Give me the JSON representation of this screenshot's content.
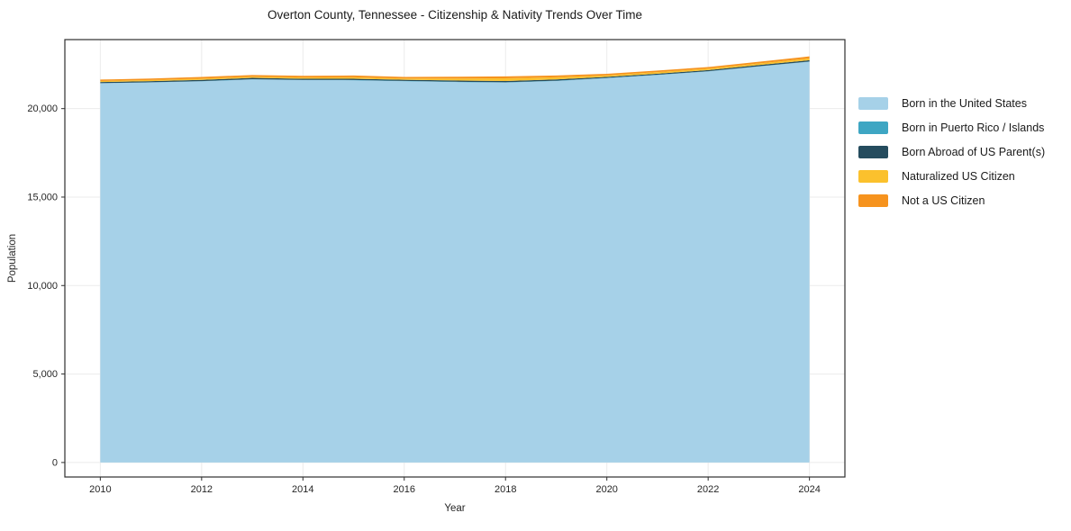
{
  "chart_data": {
    "type": "area",
    "stacked": true,
    "title": "Overton County, Tennessee - Citizenship & Nativity Trends Over Time",
    "xlabel": "Year",
    "ylabel": "Population",
    "x": [
      2010,
      2011,
      2012,
      2013,
      2014,
      2015,
      2016,
      2017,
      2018,
      2019,
      2020,
      2021,
      2022,
      2023,
      2024
    ],
    "series": [
      {
        "name": "Born in the United States",
        "color": "#a6d1e8",
        "values": [
          21430,
          21480,
          21540,
          21650,
          21610,
          21600,
          21550,
          21500,
          21470,
          21560,
          21720,
          21900,
          22100,
          22380,
          22650
        ]
      },
      {
        "name": "Born in Puerto Rico / Islands",
        "color": "#3ea6c3",
        "values": [
          10,
          10,
          15,
          15,
          15,
          20,
          15,
          20,
          20,
          20,
          15,
          15,
          15,
          15,
          15
        ]
      },
      {
        "name": "Born Abroad of US Parent(s)",
        "color": "#254c5e",
        "values": [
          60,
          65,
          70,
          70,
          65,
          70,
          65,
          70,
          70,
          70,
          60,
          60,
          60,
          65,
          70
        ]
      },
      {
        "name": "Naturalized US Citizen",
        "color": "#fbc12d",
        "values": [
          60,
          65,
          70,
          70,
          70,
          80,
          70,
          110,
          150,
          120,
          85,
          85,
          85,
          90,
          105
        ]
      },
      {
        "name": "Not a US Citizen",
        "color": "#f6931e",
        "values": [
          80,
          80,
          95,
          95,
          90,
          100,
          90,
          100,
          110,
          100,
          90,
          90,
          90,
          100,
          110
        ]
      }
    ],
    "xticks": [
      2010,
      2012,
      2014,
      2016,
      2018,
      2020,
      2022,
      2024
    ],
    "xtick_labels": [
      "2010",
      "2012",
      "2014",
      "2016",
      "2018",
      "2020",
      "2022",
      "2024"
    ],
    "yticks": [
      0,
      5000,
      10000,
      15000,
      20000
    ],
    "ytick_labels": [
      "0",
      "5,000",
      "10,000",
      "15,000",
      "20,000"
    ],
    "xlim": [
      2009.3,
      2024.7
    ],
    "ylim": [
      -820,
      23900
    ],
    "grid": true,
    "legend_position": "right",
    "style": {
      "frame_color": "#2f2f2f",
      "grid_color": "#ebebeb",
      "tick_text_color": "#262626",
      "background": "#ffffff"
    }
  }
}
